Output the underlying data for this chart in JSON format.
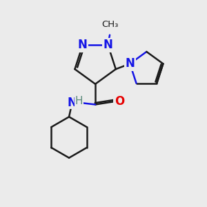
{
  "bg_color": "#ebebeb",
  "bond_color": "#1a1a1a",
  "N_color": "#1414e6",
  "O_color": "#e60000",
  "H_color": "#5a8a7a",
  "line_width": 1.8,
  "font_size": 12,
  "fig_size": [
    3.0,
    3.0
  ],
  "dpi": 100,
  "xlim": [
    0,
    10
  ],
  "ylim": [
    0,
    10
  ]
}
